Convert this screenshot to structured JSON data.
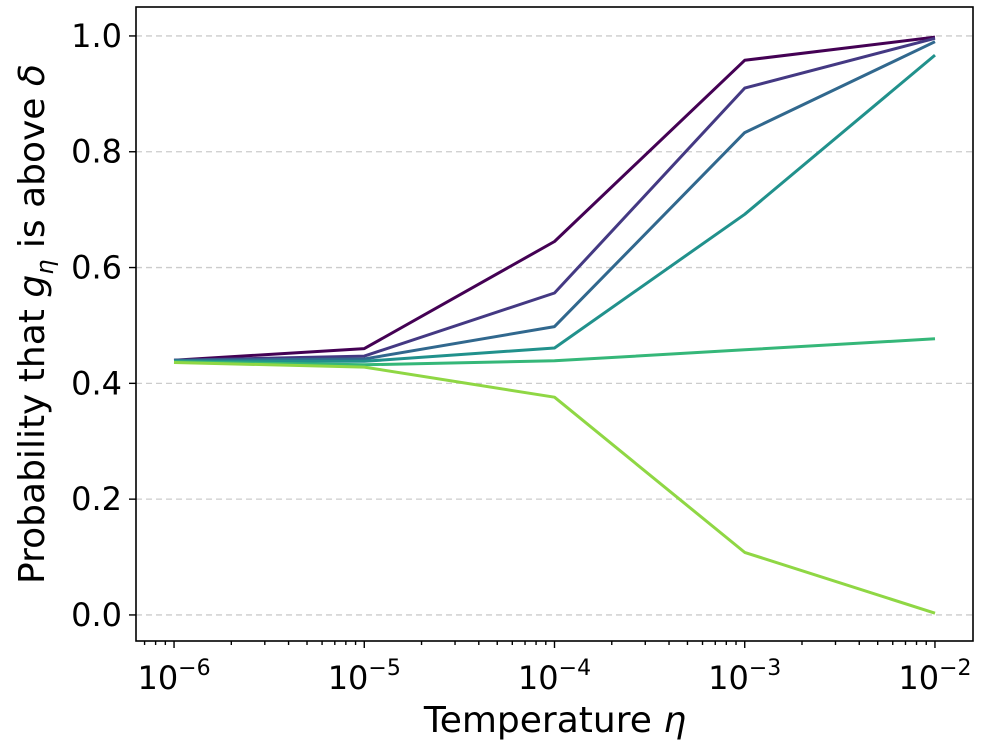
{
  "chart_data": {
    "type": "line",
    "title": "",
    "xlabel": "Temperature η",
    "ylabel": "Probability that gη is above δ",
    "xlabel_parts": {
      "text": "Temperature ",
      "symbol": "η"
    },
    "ylabel_parts": {
      "pre": "Probability that ",
      "g": "g",
      "sub": "η",
      "mid": " is above ",
      "delta": "δ"
    },
    "xscale": "log",
    "x": [
      1e-06,
      1e-05,
      0.0001,
      0.001,
      0.01
    ],
    "xticks": [
      {
        "base": "10",
        "exp": "−6",
        "value": 1e-06
      },
      {
        "base": "10",
        "exp": "−5",
        "value": 1e-05
      },
      {
        "base": "10",
        "exp": "−4",
        "value": 0.0001
      },
      {
        "base": "10",
        "exp": "−3",
        "value": 0.001
      },
      {
        "base": "10",
        "exp": "−2",
        "value": 0.01
      }
    ],
    "yticks": [
      "0.0",
      "0.2",
      "0.4",
      "0.6",
      "0.8",
      "1.0"
    ],
    "ytick_values": [
      0.0,
      0.2,
      0.4,
      0.6,
      0.8,
      1.0
    ],
    "xlim_log10": [
      -6.2,
      -1.8
    ],
    "ylim": [
      -0.045,
      1.05
    ],
    "grid": "horizontal dashed",
    "legend": "none",
    "series": [
      {
        "name": "series 1",
        "color": "#440154",
        "values": [
          0.44,
          0.46,
          0.645,
          0.958,
          0.998
        ]
      },
      {
        "name": "series 2",
        "color": "#443983",
        "values": [
          0.44,
          0.447,
          0.556,
          0.91,
          0.996
        ]
      },
      {
        "name": "series 3",
        "color": "#31688e",
        "values": [
          0.44,
          0.442,
          0.498,
          0.833,
          0.99
        ]
      },
      {
        "name": "series 4",
        "color": "#21918c",
        "values": [
          0.438,
          0.438,
          0.461,
          0.692,
          0.967
        ]
      },
      {
        "name": "series 5",
        "color": "#35b779",
        "values": [
          0.437,
          0.432,
          0.439,
          0.458,
          0.477
        ]
      },
      {
        "name": "series 6",
        "color": "#8fd744",
        "values": [
          0.436,
          0.428,
          0.376,
          0.108,
          0.003
        ]
      }
    ]
  }
}
